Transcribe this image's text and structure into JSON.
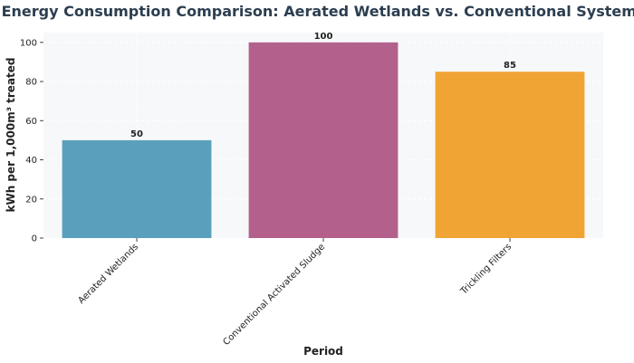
{
  "chart_data": {
    "type": "bar",
    "title": "Energy Consumption Comparison: Aerated Wetlands vs. Conventional Systems",
    "xlabel": "Period",
    "ylabel": "kWh per 1,000m³ treated",
    "categories": [
      "Aerated Wetlands",
      "Conventional Activated Sludge",
      "Trickling Filters"
    ],
    "values": [
      50,
      100,
      85
    ],
    "data_labels": [
      "50",
      "100",
      "85"
    ],
    "colors": [
      "#5a9fbc",
      "#b3618c",
      "#f0a434"
    ],
    "ylim": [
      0,
      105
    ],
    "yticks": [
      0,
      20,
      40,
      60,
      80,
      100
    ],
    "grid": true,
    "plot_background": "#f7f8fa"
  }
}
